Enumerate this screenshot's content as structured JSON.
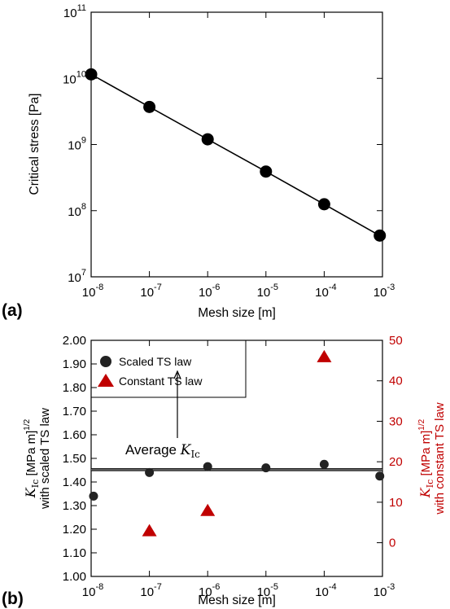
{
  "chart_data": [
    {
      "panel_label": "(a)",
      "type": "line",
      "xscale": "log",
      "yscale": "log",
      "xlabel": "Mesh size [m]",
      "ylabel": "Critical stress [Pa]",
      "xlim": [
        1e-08,
        0.001
      ],
      "ylim": [
        10000000.0,
        100000000000.0
      ],
      "x_ticks": [
        {
          "base": "10",
          "exp": "-8",
          "value": 1e-08
        },
        {
          "base": "10",
          "exp": "-7",
          "value": 1e-07
        },
        {
          "base": "10",
          "exp": "-6",
          "value": 1e-06
        },
        {
          "base": "10",
          "exp": "-5",
          "value": 1e-05
        },
        {
          "base": "10",
          "exp": "-4",
          "value": 0.0001
        },
        {
          "base": "10",
          "exp": "-3",
          "value": 0.001
        }
      ],
      "y_ticks": [
        {
          "base": "10",
          "exp": "7",
          "value": 10000000.0
        },
        {
          "base": "10",
          "exp": "8",
          "value": 100000000.0
        },
        {
          "base": "10",
          "exp": "9",
          "value": 1000000000.0
        },
        {
          "base": "10",
          "exp": "10",
          "value": 10000000000.0
        },
        {
          "base": "10",
          "exp": "11",
          "value": 100000000000.0
        }
      ],
      "series": [
        {
          "x": [
            1e-08,
            1e-07,
            1e-06,
            1e-05,
            0.0001,
            0.0009
          ],
          "y": [
            11500000000.0,
            3700000000.0,
            1200000000.0,
            390000000.0,
            125000000.0,
            42000000.0
          ]
        }
      ],
      "marker": "circle",
      "color": "#000000"
    },
    {
      "panel_label": "(b)",
      "type": "scatter",
      "xscale": "log",
      "xlabel": "Mesh size [m]",
      "xlim": [
        1e-08,
        0.001
      ],
      "ylim_left": [
        1.0,
        2.0
      ],
      "ylim_right": [
        -8.33,
        50
      ],
      "ylabel_left": {
        "sym_main": "K",
        "sym_sub": "Ic",
        "units": " [MPa m]",
        "units_exp": "1/2",
        "line2": "with scaled TS law"
      },
      "ylabel_right": {
        "sym_main": "K",
        "sym_sub": "Ic",
        "units": " [MPa m]",
        "units_exp": "1/2",
        "line2": "with constant TS law"
      },
      "x_ticks": [
        {
          "base": "10",
          "exp": "-8",
          "value": 1e-08
        },
        {
          "base": "10",
          "exp": "-7",
          "value": 1e-07
        },
        {
          "base": "10",
          "exp": "-6",
          "value": 1e-06
        },
        {
          "base": "10",
          "exp": "-5",
          "value": 1e-05
        },
        {
          "base": "10",
          "exp": "-4",
          "value": 0.0001
        },
        {
          "base": "10",
          "exp": "-3",
          "value": 0.001
        }
      ],
      "y_ticks_left": [
        "1.00",
        "1.10",
        "1.20",
        "1.30",
        "1.40",
        "1.50",
        "1.60",
        "1.70",
        "1.80",
        "1.90",
        "2.00"
      ],
      "y_ticks_right": [
        "0",
        "10",
        "20",
        "30",
        "40",
        "50"
      ],
      "series": [
        {
          "name": "Scaled TS law",
          "axis": "left",
          "marker": "circle",
          "color": "#222222",
          "x": [
            1.1e-08,
            1e-07,
            1e-06,
            1e-05,
            0.0001,
            0.0009
          ],
          "y": [
            1.34,
            1.44,
            1.465,
            1.46,
            1.475,
            1.425
          ]
        },
        {
          "name": "Constant TS law",
          "axis": "right",
          "marker": "triangle",
          "color": "#c00000",
          "x": [
            1e-07,
            1e-06,
            0.0001
          ],
          "y": [
            3.0,
            8.0,
            46.0
          ]
        }
      ],
      "average": {
        "y": 1.452,
        "band": 0.008
      },
      "annotation": {
        "prefix": "Average ",
        "sym_main": "K",
        "sym_sub": "Ic"
      },
      "legend_position": "top-left"
    }
  ]
}
